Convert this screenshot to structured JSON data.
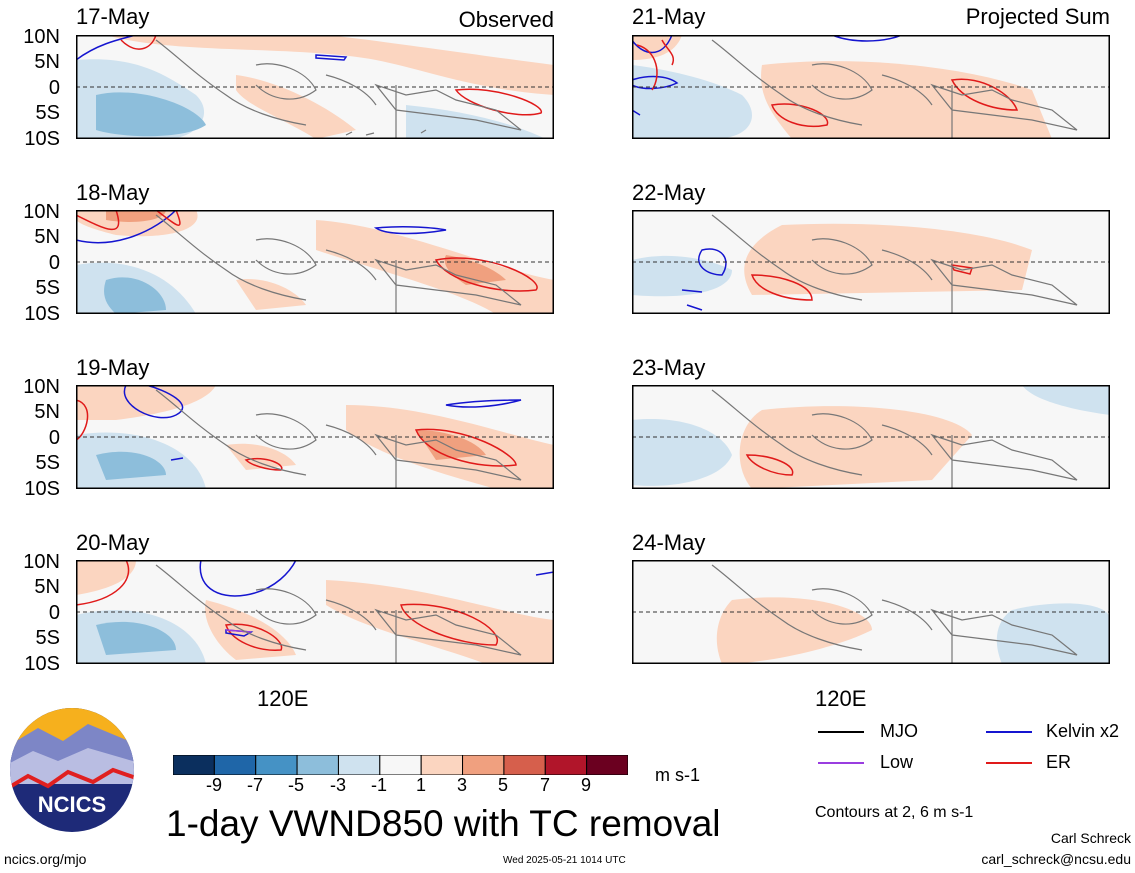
{
  "panels": {
    "left": [
      {
        "date": "17-May"
      },
      {
        "date": "18-May"
      },
      {
        "date": "19-May"
      },
      {
        "date": "20-May"
      }
    ],
    "right": [
      {
        "date": "21-May"
      },
      {
        "date": "22-May"
      },
      {
        "date": "23-May"
      },
      {
        "date": "24-May"
      }
    ],
    "left_tag": "Observed",
    "right_tag": "Projected Sum"
  },
  "lat_labels": [
    "10N",
    "5N",
    "0",
    "5S",
    "10S"
  ],
  "lon_label": "120E",
  "colorbar": {
    "labels": [
      "-9",
      "-7",
      "-5",
      "-3",
      "-1",
      "1",
      "3",
      "5",
      "7",
      "9"
    ],
    "colors": [
      "#0b2f5e",
      "#1f66a8",
      "#4592c5",
      "#8dbedb",
      "#cfe2ef",
      "#f7f7f7",
      "#fbd5c0",
      "#f0a07f",
      "#d65f4c",
      "#b1152a",
      "#6b0020"
    ],
    "units": "m s-1"
  },
  "legend": {
    "items": [
      {
        "label": "MJO",
        "color": "#000000"
      },
      {
        "label": "Kelvin x2",
        "color": "#1515d0"
      },
      {
        "label": "Low",
        "color": "#9a3de0"
      },
      {
        "label": "ER",
        "color": "#e01a1a"
      }
    ],
    "note": "Contours at 2, 6 m s-1"
  },
  "title": "1-day VWND850 with TC removal",
  "logo_text": "NCICS",
  "footer": {
    "url": "ncics.org/mjo",
    "timestamp": "Wed 2025-05-21 1014 UTC",
    "author": "Carl Schreck",
    "email": "carl_schreck@ncsu.edu"
  },
  "chart_data": [
    {
      "type": "heatmap",
      "title": "17-May",
      "subtitle": "Observed",
      "variable": "1-day VWND850 (m s-1)",
      "y_ticks": [
        "10N",
        "5N",
        "0",
        "5S",
        "10S"
      ]
    },
    {
      "type": "heatmap",
      "title": "18-May",
      "variable": "1-day VWND850 (m s-1)",
      "y_ticks": [
        "10N",
        "5N",
        "0",
        "5S",
        "10S"
      ]
    },
    {
      "type": "heatmap",
      "title": "19-May",
      "variable": "1-day VWND850 (m s-1)",
      "y_ticks": [
        "10N",
        "5N",
        "0",
        "5S",
        "10S"
      ]
    },
    {
      "type": "heatmap",
      "title": "20-May",
      "variable": "1-day VWND850 (m s-1)",
      "y_ticks": [
        "10N",
        "5N",
        "0",
        "5S",
        "10S"
      ],
      "x_ticks": [
        "120E"
      ]
    },
    {
      "type": "heatmap",
      "title": "21-May",
      "subtitle": "Projected Sum",
      "variable": "1-day VWND850 (m s-1)"
    },
    {
      "type": "heatmap",
      "title": "22-May",
      "variable": "1-day VWND850 (m s-1)"
    },
    {
      "type": "heatmap",
      "title": "23-May",
      "variable": "1-day VWND850 (m s-1)"
    },
    {
      "type": "heatmap",
      "title": "24-May",
      "variable": "1-day VWND850 (m s-1)",
      "x_ticks": [
        "120E"
      ]
    }
  ]
}
